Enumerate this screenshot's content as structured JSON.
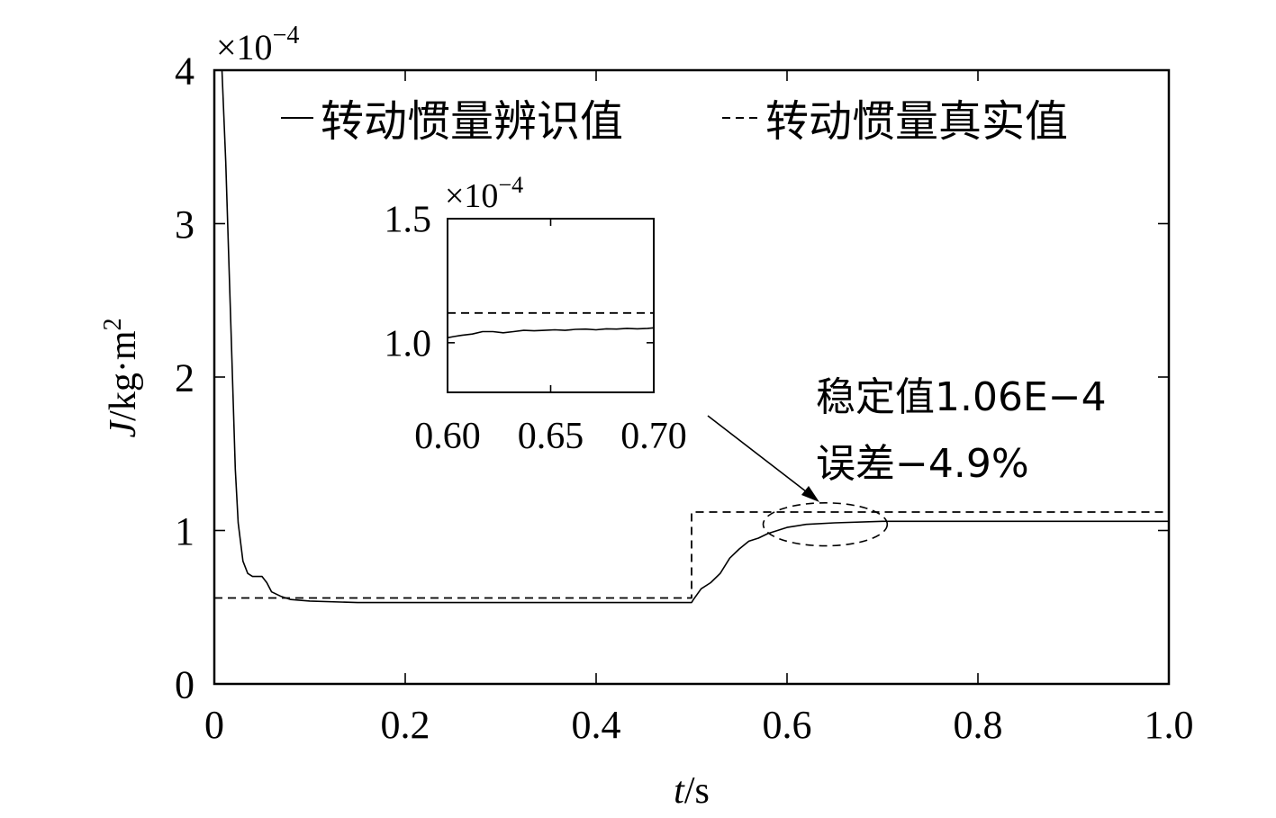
{
  "chart_data": [
    {
      "type": "line",
      "xlabel_italic": "t",
      "xlabel_unit": "/s",
      "ylabel_italic": "J",
      "ylabel_unit": "/kg·m",
      "ylabel_sup": "2",
      "y_multiplier_base": "×10",
      "y_multiplier_exp": "−4",
      "xlim": [
        0,
        1.0
      ],
      "ylim": [
        0,
        4
      ],
      "xticks": [
        "0",
        "0.2",
        "0.4",
        "0.6",
        "0.8",
        "1.0"
      ],
      "yticks": [
        "0",
        "1",
        "2",
        "3",
        "4"
      ],
      "legend": {
        "position": "top",
        "entries": [
          "转动惯量辨识值",
          "转动惯量真实值"
        ]
      },
      "series": [
        {
          "name": "转动惯量辨识值",
          "style": "solid",
          "x": [
            0.0,
            0.008,
            0.012,
            0.015,
            0.018,
            0.02,
            0.022,
            0.025,
            0.03,
            0.035,
            0.04,
            0.05,
            0.055,
            0.06,
            0.07,
            0.08,
            0.1,
            0.15,
            0.2,
            0.3,
            0.4,
            0.45,
            0.5,
            0.502,
            0.51,
            0.52,
            0.53,
            0.54,
            0.55,
            0.56,
            0.57,
            0.58,
            0.6,
            0.62,
            0.65,
            0.7,
            0.75,
            0.8,
            0.85,
            0.9,
            0.95,
            1.0
          ],
          "y": [
            4.0,
            4.0,
            3.4,
            2.8,
            2.2,
            1.8,
            1.4,
            1.05,
            0.8,
            0.72,
            0.7,
            0.7,
            0.66,
            0.6,
            0.57,
            0.55,
            0.54,
            0.53,
            0.53,
            0.53,
            0.53,
            0.53,
            0.53,
            0.55,
            0.62,
            0.66,
            0.72,
            0.82,
            0.88,
            0.93,
            0.95,
            0.98,
            1.02,
            1.04,
            1.05,
            1.06,
            1.06,
            1.06,
            1.06,
            1.06,
            1.06,
            1.06
          ]
        },
        {
          "name": "转动惯量真实值",
          "style": "dashed",
          "x": [
            0.0,
            0.5,
            0.5,
            1.0
          ],
          "y": [
            0.56,
            0.56,
            1.12,
            1.12
          ]
        }
      ],
      "annotations": [
        {
          "line1": "稳定值1.06E−4",
          "line2": "误差−4.9%"
        }
      ],
      "highlight_ellipse": {
        "cx": 0.64,
        "cy": 1.04,
        "rx": 0.065,
        "ry": 0.14
      }
    },
    {
      "type": "line",
      "role": "inset",
      "xlim": [
        0.6,
        0.7
      ],
      "ylim": [
        0.8,
        1.5
      ],
      "xticks": [
        "0.60",
        "0.65",
        "0.70"
      ],
      "yticks": [
        "1.0",
        "1.5"
      ],
      "y_multiplier_base": "×10",
      "y_multiplier_exp": "−4",
      "series": [
        {
          "name": "转动惯量辨识值",
          "style": "solid",
          "x": [
            0.6,
            0.603,
            0.607,
            0.612,
            0.617,
            0.622,
            0.627,
            0.632,
            0.637,
            0.642,
            0.647,
            0.652,
            0.657,
            0.662,
            0.667,
            0.672,
            0.677,
            0.682,
            0.687,
            0.692,
            0.697,
            0.7
          ],
          "y": [
            1.02,
            1.025,
            1.03,
            1.035,
            1.045,
            1.045,
            1.04,
            1.045,
            1.05,
            1.048,
            1.05,
            1.052,
            1.05,
            1.054,
            1.055,
            1.052,
            1.056,
            1.055,
            1.058,
            1.056,
            1.058,
            1.06
          ]
        },
        {
          "name": "转动惯量真实值",
          "style": "dashed",
          "x": [
            0.6,
            0.7
          ],
          "y": [
            1.12,
            1.12
          ]
        }
      ]
    }
  ]
}
